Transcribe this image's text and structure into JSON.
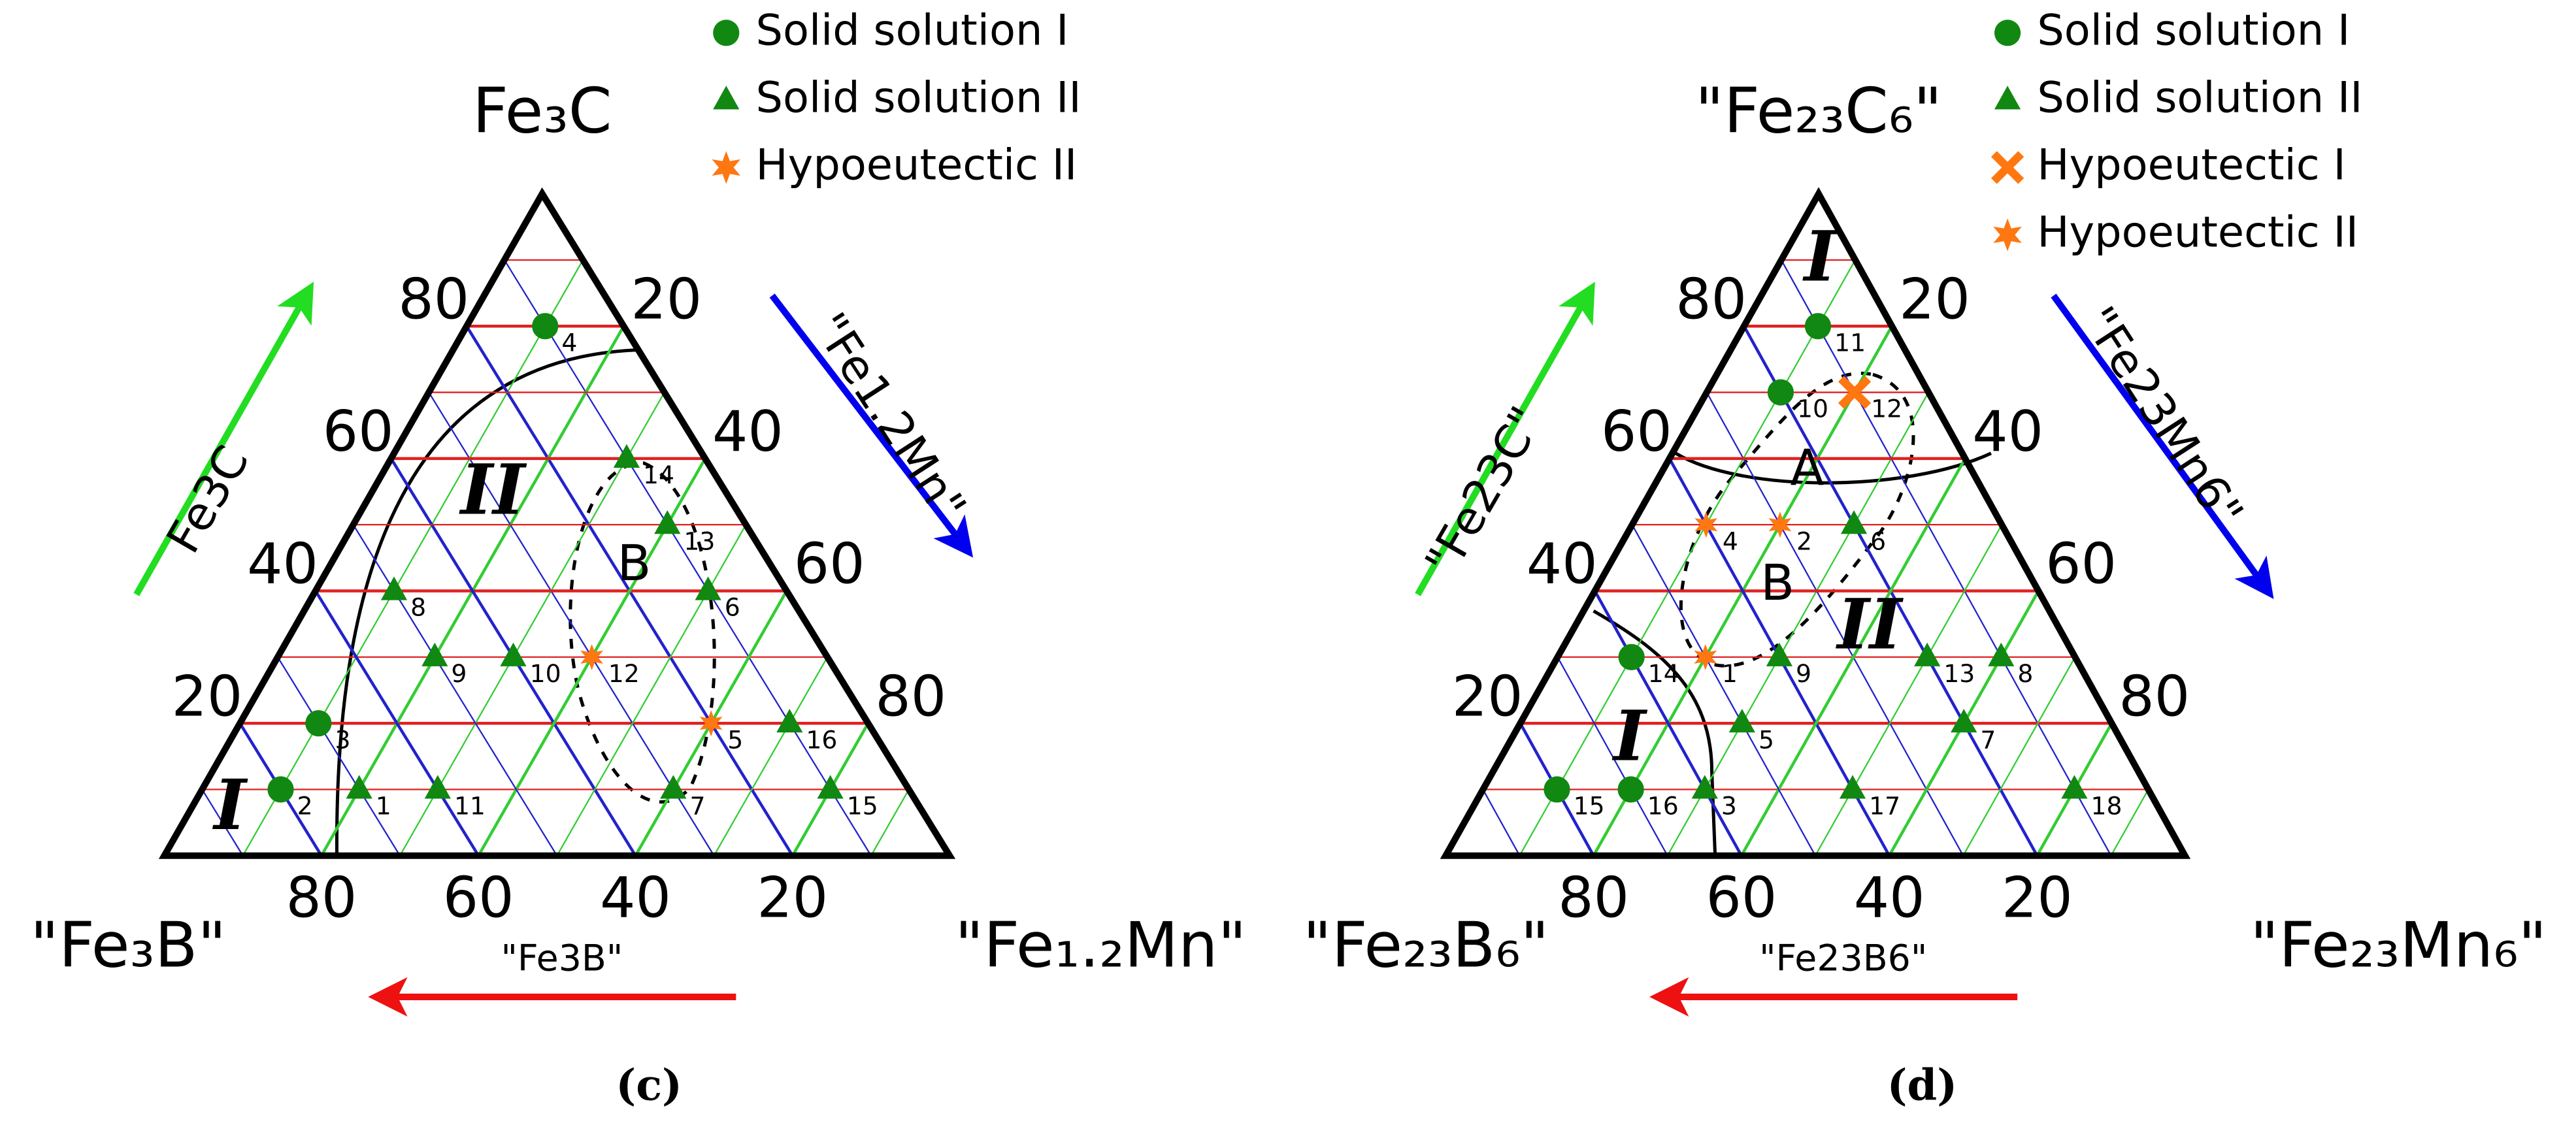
{
  "chart_data": [
    {
      "type": "ternary",
      "caption": "(c)",
      "vertex_labels": {
        "top": "Fe₃C",
        "left": "\"Fe₃B\"",
        "right": "\"Fe₁.₂Mn\""
      },
      "axis_labels": {
        "left": "Fe3C",
        "right": "\"Fe1.2Mn\"",
        "bottom": "\"Fe3B\""
      },
      "axis_colors": {
        "left": "#22dd22",
        "right": "#0000ee",
        "bottom": "#ee1111"
      },
      "ticks": [
        20,
        40,
        60,
        80
      ],
      "grid": [
        10,
        20,
        30,
        40,
        50,
        60,
        70,
        80,
        90
      ],
      "grid_colors": {
        "top": "#e02020",
        "left": "#2222cc",
        "right": "#33cc33"
      },
      "regions": [
        "II",
        "I",
        "B"
      ],
      "series": [
        {
          "name": "Solid solution I",
          "color": "#118811",
          "marker": "circle",
          "points": [
            {
              "label": "4",
              "values": [
                80,
                10,
                10
              ]
            },
            {
              "label": "3",
              "values": [
                20,
                70,
                10
              ]
            },
            {
              "label": "2",
              "values": [
                10,
                80,
                10
              ]
            }
          ]
        },
        {
          "name": "Solid solution II",
          "color": "#118811",
          "marker": "triangle",
          "points": [
            {
              "label": "14",
              "values": [
                60,
                10,
                30
              ]
            },
            {
              "label": "13",
              "values": [
                50,
                10,
                40
              ]
            },
            {
              "label": "6",
              "values": [
                40,
                10,
                50
              ]
            },
            {
              "label": "8",
              "values": [
                40,
                50,
                10
              ]
            },
            {
              "label": "9",
              "values": [
                30,
                50,
                20
              ]
            },
            {
              "label": "10",
              "values": [
                30,
                40,
                30
              ]
            },
            {
              "label": "16",
              "values": [
                20,
                10,
                70
              ]
            },
            {
              "label": "1",
              "values": [
                10,
                70,
                20
              ]
            },
            {
              "label": "11",
              "values": [
                10,
                60,
                30
              ]
            },
            {
              "label": "7",
              "values": [
                10,
                30,
                60
              ]
            },
            {
              "label": "15",
              "values": [
                10,
                10,
                80
              ]
            }
          ]
        },
        {
          "name": "Hypoeutectic II",
          "color": "#ff7711",
          "marker": "star",
          "points": [
            {
              "label": "12",
              "values": [
                30,
                30,
                40
              ]
            },
            {
              "label": "5",
              "values": [
                20,
                20,
                60
              ]
            }
          ]
        }
      ]
    },
    {
      "type": "ternary",
      "caption": "(d)",
      "vertex_labels": {
        "top": "\"Fe₂₃C₆\"",
        "left": "\"Fe₂₃B₆\"",
        "right": "\"Fe₂₃Mn₆\""
      },
      "axis_labels": {
        "left": "\"Fe23C\"",
        "right": "\"Fe23Mn6\"",
        "bottom": "\"Fe23B6\""
      },
      "axis_colors": {
        "left": "#22dd22",
        "right": "#0000ee",
        "bottom": "#ee1111"
      },
      "ticks": [
        20,
        40,
        60,
        80
      ],
      "grid": [
        10,
        20,
        30,
        40,
        50,
        60,
        70,
        80,
        90
      ],
      "grid_colors": {
        "top": "#e02020",
        "left": "#2222cc",
        "right": "#33cc33"
      },
      "regions": [
        "I",
        "A",
        "B",
        "II",
        "I"
      ],
      "series": [
        {
          "name": "Solid solution I",
          "color": "#118811",
          "marker": "circle",
          "points": [
            {
              "label": "11",
              "values": [
                80,
                10,
                10
              ]
            },
            {
              "label": "10",
              "values": [
                70,
                20,
                10
              ]
            },
            {
              "label": "14",
              "values": [
                30,
                60,
                10
              ]
            },
            {
              "label": "15",
              "values": [
                10,
                80,
                10
              ]
            },
            {
              "label": "16",
              "values": [
                10,
                70,
                20
              ]
            }
          ]
        },
        {
          "name": "Solid solution II",
          "color": "#118811",
          "marker": "triangle",
          "points": [
            {
              "label": "6",
              "values": [
                50,
                20,
                30
              ]
            },
            {
              "label": "9",
              "values": [
                30,
                40,
                30
              ]
            },
            {
              "label": "13",
              "values": [
                30,
                20,
                50
              ]
            },
            {
              "label": "8",
              "values": [
                30,
                10,
                60
              ]
            },
            {
              "label": "5",
              "values": [
                20,
                50,
                30
              ]
            },
            {
              "label": "7",
              "values": [
                20,
                20,
                60
              ]
            },
            {
              "label": "3",
              "values": [
                10,
                60,
                30
              ]
            },
            {
              "label": "17",
              "values": [
                10,
                40,
                50
              ]
            },
            {
              "label": "18",
              "values": [
                10,
                10,
                80
              ]
            }
          ]
        },
        {
          "name": "Hypoeutectic I",
          "color": "#ff7711",
          "marker": "x",
          "points": [
            {
              "label": "12",
              "values": [
                70,
                10,
                20
              ]
            }
          ]
        },
        {
          "name": "Hypoeutectic II",
          "color": "#ff7711",
          "marker": "star",
          "points": [
            {
              "label": "4",
              "values": [
                50,
                40,
                10
              ]
            },
            {
              "label": "2",
              "values": [
                50,
                30,
                20
              ]
            },
            {
              "label": "1",
              "values": [
                30,
                50,
                20
              ]
            }
          ]
        }
      ]
    }
  ]
}
